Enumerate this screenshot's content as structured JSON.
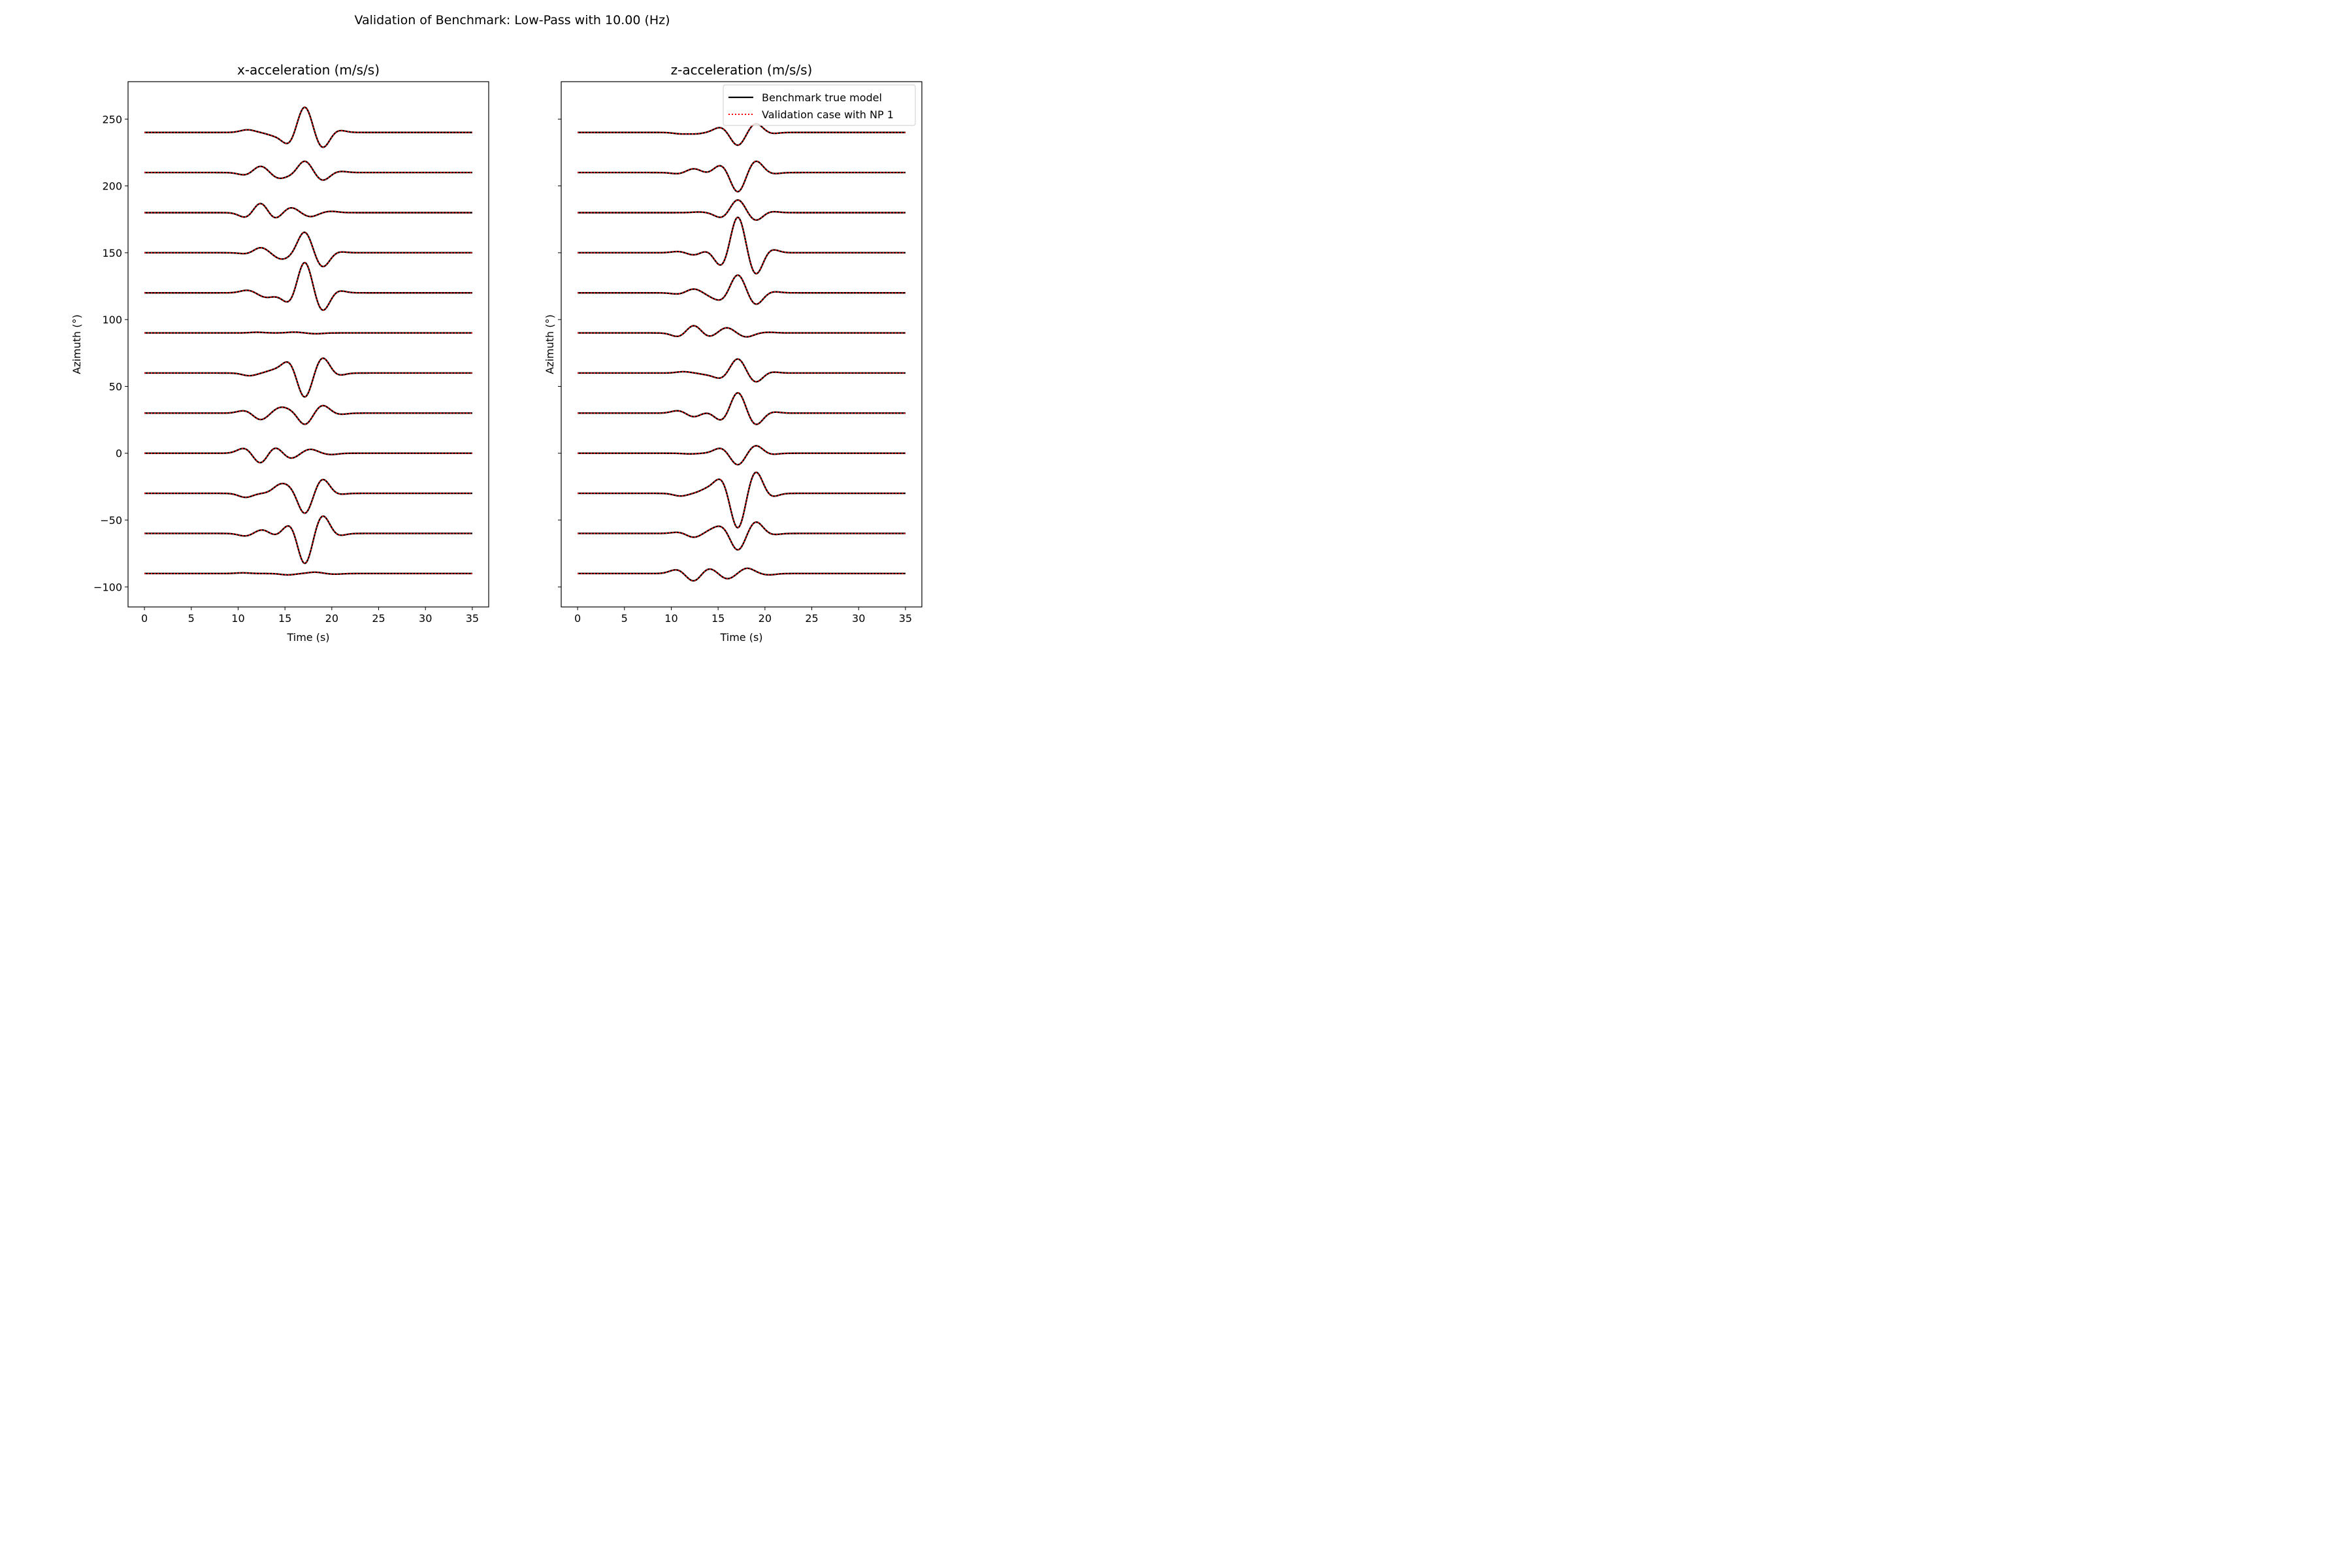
{
  "figure": {
    "suptitle": "Validation of Benchmark: Low-Pass with 10.00 (Hz)"
  },
  "legend": {
    "placement": "upper-right of right panel",
    "entries": [
      {
        "label": "Benchmark true model",
        "color": "#000000",
        "style": "solid"
      },
      {
        "label": "Validation case with NP 1",
        "color": "#ff0000",
        "style": "dotted"
      }
    ]
  },
  "chart_data": [
    {
      "type": "line",
      "title": "x-acceleration (m/s/s)",
      "xlabel": "Time (s)",
      "ylabel": "Azimuth (°)",
      "xlim": [
        -1.75,
        36.75
      ],
      "ylim": [
        -115,
        278
      ],
      "xticks": [
        0,
        5,
        10,
        15,
        20,
        25,
        30,
        35
      ],
      "xtick_labels": [
        "0",
        "5",
        "10",
        "15",
        "20",
        "25",
        "30",
        "35"
      ],
      "yticks": [
        -100,
        -50,
        0,
        50,
        100,
        150,
        200,
        250
      ],
      "ytick_labels": [
        "−100",
        "−50",
        "0",
        "50",
        "100",
        "150",
        "200",
        "250"
      ],
      "grid": false,
      "time_range": [
        0,
        35
      ],
      "traces": [
        {
          "azimuth": -90,
          "peaks": [
            [
              10.5,
              0.5
            ],
            [
              15.3,
              -1
            ],
            [
              18.2,
              1
            ],
            [
              20.3,
              -0.5
            ]
          ]
        },
        {
          "azimuth": -60,
          "peaks": [
            [
              10.8,
              -2
            ],
            [
              12.6,
              3
            ],
            [
              14.0,
              -2
            ],
            [
              15.6,
              8
            ],
            [
              17.1,
              -24
            ],
            [
              19.0,
              14
            ],
            [
              20.6,
              -2
            ]
          ]
        },
        {
          "azimuth": -30,
          "peaks": [
            [
              10.8,
              -3
            ],
            [
              14.5,
              6
            ],
            [
              15.7,
              4
            ],
            [
              17.1,
              -16
            ],
            [
              19.0,
              11
            ],
            [
              20.6,
              -1
            ]
          ]
        },
        {
          "azimuth": 0,
          "peaks": [
            [
              10.7,
              4
            ],
            [
              12.4,
              -8
            ],
            [
              13.9,
              5
            ],
            [
              15.6,
              -4
            ],
            [
              17.7,
              3
            ],
            [
              19.9,
              -1
            ]
          ]
        },
        {
          "azimuth": 30,
          "peaks": [
            [
              10.7,
              2
            ],
            [
              12.4,
              -5
            ],
            [
              14.5,
              4
            ],
            [
              15.8,
              2
            ],
            [
              17.1,
              -9
            ],
            [
              19.0,
              6
            ],
            [
              20.8,
              -1
            ]
          ]
        },
        {
          "azimuth": 60,
          "peaks": [
            [
              11.2,
              -2
            ],
            [
              13.8,
              2
            ],
            [
              15.4,
              9
            ],
            [
              17.1,
              -19
            ],
            [
              19.0,
              12
            ],
            [
              20.6,
              -2
            ]
          ]
        },
        {
          "azimuth": 90,
          "peaks": [
            [
              12.0,
              0.5
            ],
            [
              16.0,
              0.6
            ],
            [
              18.3,
              -0.6
            ]
          ]
        },
        {
          "azimuth": 120,
          "peaks": [
            [
              11.0,
              2
            ],
            [
              12.9,
              -3
            ],
            [
              14.0,
              -1
            ],
            [
              15.5,
              -8
            ],
            [
              17.1,
              24
            ],
            [
              19.0,
              -14
            ],
            [
              20.6,
              2
            ]
          ]
        },
        {
          "azimuth": 150,
          "peaks": [
            [
              11.0,
              -1
            ],
            [
              12.4,
              4
            ],
            [
              14.5,
              -4
            ],
            [
              15.6,
              -2
            ],
            [
              17.1,
              16
            ],
            [
              19.0,
              -11
            ],
            [
              20.6,
              1
            ]
          ]
        },
        {
          "azimuth": 180,
          "peaks": [
            [
              10.9,
              -4
            ],
            [
              12.4,
              8
            ],
            [
              13.9,
              -5
            ],
            [
              15.6,
              4
            ],
            [
              17.7,
              -3
            ],
            [
              19.9,
              1
            ]
          ]
        },
        {
          "azimuth": 210,
          "peaks": [
            [
              10.8,
              -2
            ],
            [
              12.4,
              5
            ],
            [
              14.3,
              -4
            ],
            [
              15.7,
              -2
            ],
            [
              17.1,
              9
            ],
            [
              19.0,
              -6
            ],
            [
              20.8,
              1
            ]
          ]
        },
        {
          "azimuth": 240,
          "peaks": [
            [
              11.0,
              2
            ],
            [
              13.8,
              -2
            ],
            [
              15.4,
              -9
            ],
            [
              17.1,
              20
            ],
            [
              19.0,
              -12
            ],
            [
              20.6,
              2
            ]
          ]
        }
      ]
    },
    {
      "type": "line",
      "title": "z-acceleration (m/s/s)",
      "xlabel": "Time (s)",
      "ylabel": "Azimuth (°)",
      "xlim": [
        -1.75,
        36.75
      ],
      "ylim": [
        -115,
        278
      ],
      "xticks": [
        0,
        5,
        10,
        15,
        20,
        25,
        30,
        35
      ],
      "xtick_labels": [
        "0",
        "5",
        "10",
        "15",
        "20",
        "25",
        "30",
        "35"
      ],
      "yticks": [
        -100,
        -50,
        0,
        50,
        100,
        150,
        200,
        250
      ],
      "ytick_labels": [
        "",
        "",
        "",
        "",
        "",
        "",
        "",
        ""
      ],
      "grid": false,
      "time_range": [
        0,
        35
      ],
      "traces": [
        {
          "azimuth": -90,
          "peaks": [
            [
              10.6,
              3
            ],
            [
              12.4,
              -6
            ],
            [
              14.0,
              4
            ],
            [
              16.0,
              -4
            ],
            [
              18.1,
              4
            ],
            [
              20.4,
              -1
            ]
          ]
        },
        {
          "azimuth": -60,
          "peaks": [
            [
              10.8,
              1
            ],
            [
              12.4,
              -3
            ],
            [
              14.3,
              2
            ],
            [
              15.4,
              5
            ],
            [
              17.1,
              -13
            ],
            [
              19.0,
              9
            ],
            [
              20.8,
              -1
            ]
          ]
        },
        {
          "azimuth": -30,
          "peaks": [
            [
              11.0,
              -2
            ],
            [
              13.8,
              3
            ],
            [
              15.3,
              11
            ],
            [
              17.1,
              -27
            ],
            [
              19.0,
              17
            ],
            [
              20.6,
              -3
            ]
          ]
        },
        {
          "azimuth": 0,
          "peaks": [
            [
              12.0,
              -0.5
            ],
            [
              15.3,
              4
            ],
            [
              17.1,
              -9
            ],
            [
              19.0,
              6
            ],
            [
              20.6,
              -1
            ]
          ]
        },
        {
          "azimuth": 30,
          "peaks": [
            [
              10.8,
              2
            ],
            [
              12.4,
              -3
            ],
            [
              13.8,
              1
            ],
            [
              15.4,
              -6
            ],
            [
              17.1,
              16
            ],
            [
              19.0,
              -9
            ],
            [
              20.8,
              1
            ]
          ]
        },
        {
          "azimuth": 60,
          "peaks": [
            [
              11.3,
              1
            ],
            [
              13.8,
              -1
            ],
            [
              15.3,
              -4
            ],
            [
              17.1,
              11
            ],
            [
              19.0,
              -7
            ],
            [
              20.6,
              1
            ]
          ]
        },
        {
          "azimuth": 90,
          "peaks": [
            [
              10.8,
              -3
            ],
            [
              12.4,
              6
            ],
            [
              14.0,
              -3
            ],
            [
              15.9,
              4
            ],
            [
              18.0,
              -3
            ],
            [
              20.4,
              0.5
            ]
          ]
        },
        {
          "azimuth": 120,
          "peaks": [
            [
              10.8,
              -1
            ],
            [
              12.4,
              3
            ],
            [
              14.3,
              -2
            ],
            [
              15.4,
              -5
            ],
            [
              17.1,
              14
            ],
            [
              19.0,
              -9
            ],
            [
              20.8,
              1
            ]
          ]
        },
        {
          "azimuth": 150,
          "peaks": [
            [
              10.8,
              1
            ],
            [
              12.5,
              -2
            ],
            [
              13.8,
              2
            ],
            [
              15.4,
              -11
            ],
            [
              17.1,
              28
            ],
            [
              19.0,
              -17
            ],
            [
              20.6,
              3
            ]
          ]
        },
        {
          "azimuth": 180,
          "peaks": [
            [
              13.0,
              0.5
            ],
            [
              15.4,
              -4
            ],
            [
              17.1,
              10
            ],
            [
              19.0,
              -6
            ],
            [
              20.6,
              1
            ]
          ]
        },
        {
          "azimuth": 210,
          "peaks": [
            [
              10.8,
              -1
            ],
            [
              12.4,
              3
            ],
            [
              14.0,
              -1
            ],
            [
              15.3,
              6
            ],
            [
              17.1,
              -15
            ],
            [
              19.0,
              9
            ],
            [
              20.8,
              -1
            ]
          ]
        },
        {
          "azimuth": 240,
          "peaks": [
            [
              11.0,
              -1
            ],
            [
              12.6,
              -1
            ],
            [
              15.3,
              4
            ],
            [
              17.1,
              -10
            ],
            [
              19.0,
              7
            ],
            [
              20.6,
              -1
            ]
          ]
        }
      ]
    }
  ]
}
